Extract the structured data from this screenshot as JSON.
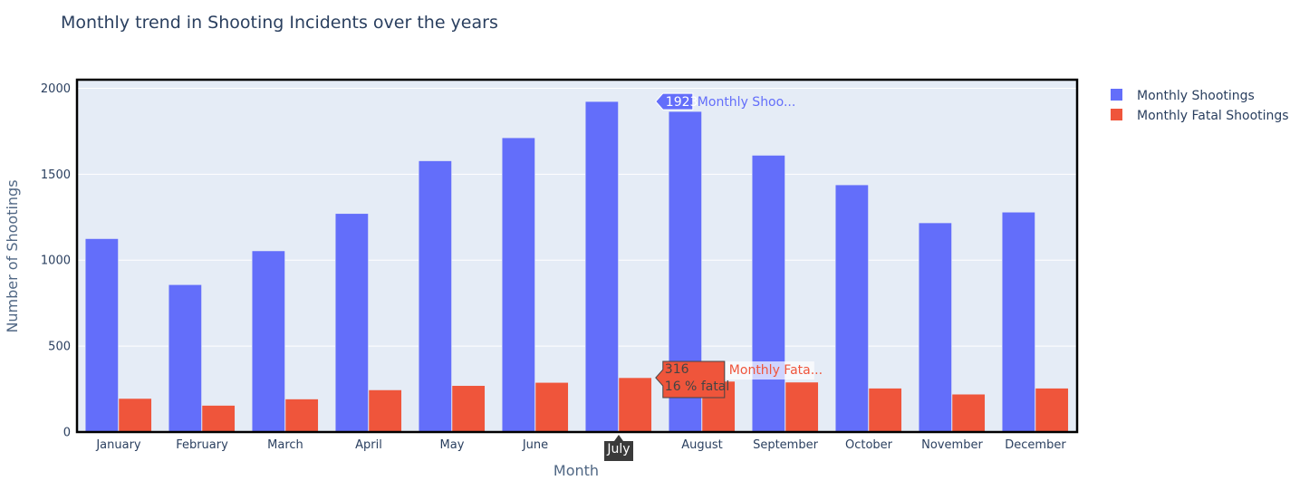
{
  "chart_data": {
    "type": "bar",
    "title": "Monthly trend in Shooting Incidents over the years",
    "xlabel": "Month",
    "ylabel": "Number of Shootings",
    "categories": [
      "January",
      "February",
      "March",
      "April",
      "May",
      "June",
      "July",
      "August",
      "September",
      "October",
      "November",
      "December"
    ],
    "series": [
      {
        "name": "Monthly Shootings",
        "color": "#636efa",
        "values": [
          1125,
          857,
          1054,
          1271,
          1578,
          1712,
          1923,
          1865,
          1610,
          1438,
          1217,
          1279
        ]
      },
      {
        "name": "Monthly Fatal Shootings",
        "color": "#ef553b",
        "values": [
          195,
          155,
          192,
          245,
          270,
          288,
          316,
          295,
          290,
          255,
          220,
          255
        ]
      }
    ],
    "ylim": [
      0,
      2050
    ],
    "yticks": [
      0,
      500,
      1000,
      1500,
      2000
    ],
    "grid": true,
    "legend_position": "top-right",
    "plot_bgcolor": "#e5ecf6",
    "hover": {
      "category": "July",
      "shootings_value": "1923",
      "shootings_series": "Monthly Shoo...",
      "fatal_value": "316",
      "fatal_pct": "16 % fatal",
      "fatal_series": "Monthly Fata..."
    }
  }
}
